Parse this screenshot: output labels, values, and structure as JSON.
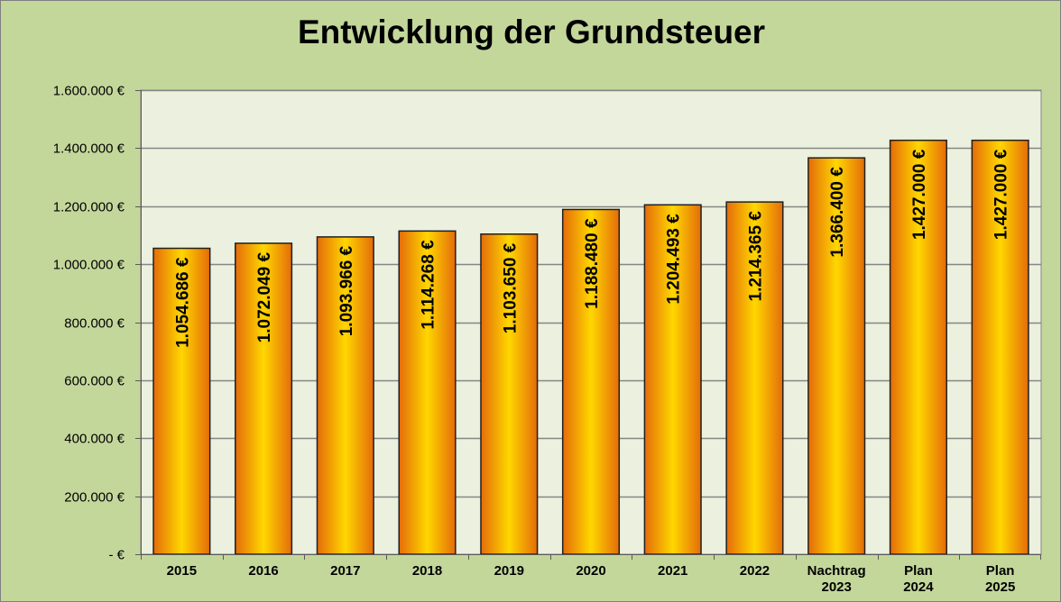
{
  "chart_data": {
    "type": "bar",
    "title": "Entwicklung der Grundsteuer",
    "xlabel": "",
    "ylabel": "",
    "ylim": [
      0,
      1600000
    ],
    "yticks": [
      0,
      200000,
      400000,
      600000,
      800000,
      1000000,
      1200000,
      1400000,
      1600000
    ],
    "ytick_labels": [
      "-  €",
      "200.000 €",
      "400.000 €",
      "600.000 €",
      "800.000 €",
      "1.000.000 €",
      "1.200.000 €",
      "1.400.000 €",
      "1.600.000 €"
    ],
    "grid": true,
    "legend": "none",
    "categories": [
      [
        "2015"
      ],
      [
        "2016"
      ],
      [
        "2017"
      ],
      [
        "2018"
      ],
      [
        "2019"
      ],
      [
        "2020"
      ],
      [
        "2021"
      ],
      [
        "2022"
      ],
      [
        "Nachtrag",
        "2023"
      ],
      [
        "Plan",
        "2024"
      ],
      [
        "Plan",
        "2025"
      ]
    ],
    "values": [
      1054686,
      1072049,
      1093966,
      1114268,
      1103650,
      1188480,
      1204493,
      1214365,
      1366400,
      1427000,
      1427000
    ],
    "data_labels": [
      "1.054.686 €",
      "1.072.049 €",
      "1.093.966 €",
      "1.114.268 €",
      "1.103.650 €",
      "1.188.480 €",
      "1.204.493 €",
      "1.214.365 €",
      "1.366.400 €",
      "1.427.000 €",
      "1.427.000 €"
    ],
    "colors": {
      "background": "#c4d79b",
      "plot_area": "#ebf1de",
      "bar_edge": "#e46c0a",
      "bar_center": "#ffd700",
      "bar_outline": "#1f1f1f",
      "gridline": "#868686"
    }
  }
}
